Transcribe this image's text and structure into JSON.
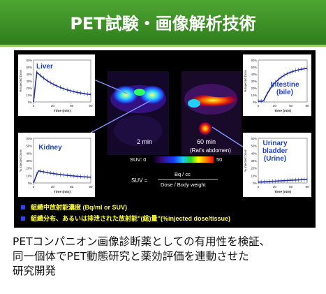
{
  "header": {
    "title": "PET試験・画像解析技術"
  },
  "panel": {
    "time_2": "2 min",
    "time_60": "60 min",
    "rat_caption": "(Rat's abdomen)",
    "suv_scale": {
      "label": "SUV: 0",
      "max": "50"
    },
    "formula": {
      "lhs": "SUV =",
      "numerator": "Bq / cc",
      "denominator": "Dose / Body weight"
    },
    "bullets": [
      "組織中放射能濃度 (Bq/ml or SUV)",
      "組織分布、あるいは排泄された放射能”(総)量”(%injected dose/tissue)"
    ],
    "colors": {
      "panel_bg": "#000000",
      "curve": "#1f2e9a",
      "label": "#1a3fd0",
      "bullet": "#2a44ff",
      "header_green": "#3f9a2a"
    }
  },
  "charts": [
    {
      "organ": "Liver",
      "ylabel": "% Injected Dose",
      "yticks": [
        "60%",
        "50%",
        "40%",
        "30%",
        "20%",
        "10%",
        "0%"
      ],
      "xticks": [
        "0",
        "30",
        "60",
        "90"
      ],
      "xlabel": "Time (min)"
    },
    {
      "organ": "Kidney",
      "ylabel": "% Injected Dose",
      "yticks": [
        "60%",
        "50%",
        "40%",
        "30%",
        "20%",
        "10%",
        "0%"
      ],
      "xticks": [
        "0",
        "30",
        "60",
        "90"
      ],
      "xlabel": "Time (min)"
    },
    {
      "organ_lines": [
        "Intestine",
        "(bile)"
      ],
      "ylabel": "% Injected Dose",
      "yticks": [
        "60%",
        "50%",
        "40%",
        "30%",
        "20%",
        "10%",
        "0%"
      ],
      "xticks": [
        "0",
        "30",
        "60",
        "90"
      ],
      "xlabel": "Time (min)"
    },
    {
      "organ_lines": [
        "Urinary",
        "bladder",
        "(Urine)"
      ],
      "ylabel": "% Injected Dose",
      "yticks": [
        "60%",
        "50%",
        "40%",
        "30%",
        "20%",
        "10%",
        "0%"
      ],
      "xticks": [
        "0",
        "30",
        "60",
        "90"
      ],
      "xlabel": "Time (min)"
    }
  ],
  "footer": {
    "lines": [
      "PETコンパニオン画像診断薬としての有用性を検証、",
      "同一個体でPET動態研究と薬効評価を連動させた",
      "研究開発"
    ]
  }
}
